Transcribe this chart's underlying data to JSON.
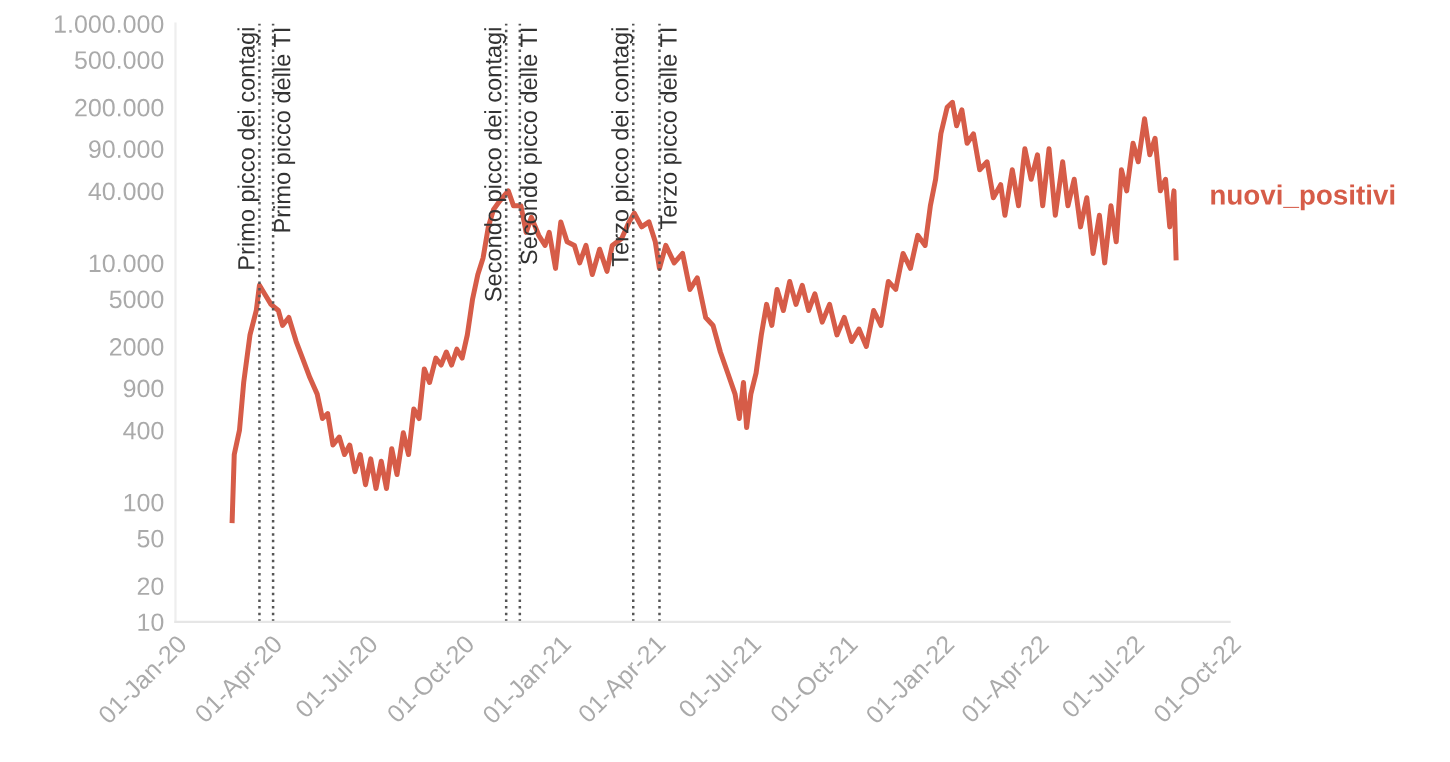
{
  "chart_data": {
    "type": "line",
    "x": [
      "2020-02-24",
      "2020-02-26",
      "2020-03-02",
      "2020-03-06",
      "2020-03-12",
      "2020-03-18",
      "2020-03-21",
      "2020-03-26",
      "2020-04-01",
      "2020-04-08",
      "2020-04-12",
      "2020-04-18",
      "2020-04-25",
      "2020-05-01",
      "2020-05-08",
      "2020-05-15",
      "2020-05-20",
      "2020-05-25",
      "2020-05-30",
      "2020-06-05",
      "2020-06-10",
      "2020-06-15",
      "2020-06-20",
      "2020-06-25",
      "2020-06-30",
      "2020-07-05",
      "2020-07-10",
      "2020-07-15",
      "2020-07-20",
      "2020-07-25",
      "2020-07-30",
      "2020-08-05",
      "2020-08-10",
      "2020-08-15",
      "2020-08-20",
      "2020-08-25",
      "2020-08-30",
      "2020-09-05",
      "2020-09-10",
      "2020-09-15",
      "2020-09-20",
      "2020-09-25",
      "2020-09-30",
      "2020-10-05",
      "2020-10-10",
      "2020-10-15",
      "2020-10-20",
      "2020-10-25",
      "2020-10-30",
      "2020-11-05",
      "2020-11-13",
      "2020-11-18",
      "2020-11-25",
      "2020-11-30",
      "2020-12-05",
      "2020-12-12",
      "2020-12-18",
      "2020-12-22",
      "2020-12-28",
      "2021-01-02",
      "2021-01-08",
      "2021-01-15",
      "2021-01-20",
      "2021-01-26",
      "2021-02-01",
      "2021-02-08",
      "2021-02-15",
      "2021-02-20",
      "2021-03-01",
      "2021-03-08",
      "2021-03-13",
      "2021-03-20",
      "2021-03-27",
      "2021-04-02",
      "2021-04-06",
      "2021-04-12",
      "2021-04-20",
      "2021-04-28",
      "2021-05-05",
      "2021-05-12",
      "2021-05-20",
      "2021-05-27",
      "2021-06-03",
      "2021-06-10",
      "2021-06-17",
      "2021-06-21",
      "2021-06-25",
      "2021-06-28",
      "2021-07-02",
      "2021-07-07",
      "2021-07-12",
      "2021-07-17",
      "2021-07-22",
      "2021-07-27",
      "2021-08-02",
      "2021-08-08",
      "2021-08-14",
      "2021-08-20",
      "2021-08-26",
      "2021-09-01",
      "2021-09-08",
      "2021-09-15",
      "2021-09-22",
      "2021-09-29",
      "2021-10-06",
      "2021-10-13",
      "2021-10-20",
      "2021-10-27",
      "2021-11-03",
      "2021-11-10",
      "2021-11-17",
      "2021-11-24",
      "2021-12-01",
      "2021-12-08",
      "2021-12-15",
      "2021-12-20",
      "2021-12-25",
      "2021-12-30",
      "2022-01-05",
      "2022-01-10",
      "2022-01-14",
      "2022-01-19",
      "2022-01-24",
      "2022-01-30",
      "2022-02-05",
      "2022-02-12",
      "2022-02-18",
      "2022-02-25",
      "2022-03-01",
      "2022-03-08",
      "2022-03-14",
      "2022-03-20",
      "2022-03-26",
      "2022-04-01",
      "2022-04-06",
      "2022-04-12",
      "2022-04-18",
      "2022-04-25",
      "2022-04-30",
      "2022-05-06",
      "2022-05-12",
      "2022-05-18",
      "2022-05-24",
      "2022-05-30",
      "2022-06-04",
      "2022-06-10",
      "2022-06-15",
      "2022-06-20",
      "2022-06-25",
      "2022-07-01",
      "2022-07-06",
      "2022-07-12",
      "2022-07-17",
      "2022-07-22",
      "2022-07-27",
      "2022-08-01",
      "2022-08-05",
      "2022-08-09",
      "2022-08-11"
    ],
    "series": [
      {
        "name": "nuovi_positivi",
        "color": "#d65c48",
        "values": [
          70,
          250,
          400,
          1000,
          2500,
          4000,
          6500,
          5500,
          4500,
          4000,
          3000,
          3500,
          2200,
          1600,
          1100,
          800,
          500,
          550,
          300,
          350,
          250,
          300,
          180,
          250,
          140,
          230,
          130,
          220,
          130,
          280,
          170,
          380,
          250,
          600,
          500,
          1300,
          1000,
          1600,
          1400,
          1800,
          1400,
          1900,
          1600,
          2500,
          5000,
          8000,
          11000,
          20000,
          28000,
          33000,
          40000,
          30000,
          30000,
          18000,
          24000,
          17000,
          14000,
          18000,
          9000,
          22000,
          15000,
          14000,
          10000,
          14000,
          8000,
          13000,
          8500,
          14000,
          16000,
          22000,
          26000,
          20000,
          22000,
          15000,
          9000,
          14000,
          10000,
          12000,
          6000,
          7500,
          3500,
          3000,
          1800,
          1200,
          800,
          500,
          1000,
          420,
          800,
          1200,
          2500,
          4500,
          3000,
          6000,
          4000,
          7000,
          4500,
          6500,
          4000,
          5500,
          3200,
          4500,
          2500,
          3500,
          2200,
          2800,
          2000,
          4000,
          3000,
          7000,
          6000,
          12000,
          9000,
          17000,
          14000,
          30000,
          50000,
          120000,
          200000,
          220000,
          140000,
          190000,
          100000,
          120000,
          60000,
          70000,
          35000,
          45000,
          25000,
          60000,
          30000,
          90000,
          50000,
          80000,
          30000,
          90000,
          25000,
          70000,
          30000,
          50000,
          20000,
          35000,
          12000,
          25000,
          10000,
          30000,
          15000,
          60000,
          40000,
          100000,
          70000,
          160000,
          80000,
          110000,
          40000,
          50000,
          20000,
          40000,
          11000
        ]
      }
    ],
    "log": "y",
    "xlim": [
      "2020-01-01",
      "2022-10-01"
    ],
    "xticks": [
      {
        "value": "2020-01-01",
        "label": "01-Jan-20"
      },
      {
        "value": "2020-04-01",
        "label": "01-Apr-20"
      },
      {
        "value": "2020-07-01",
        "label": "01-Jul-20"
      },
      {
        "value": "2020-10-01",
        "label": "01-Oct-20"
      },
      {
        "value": "2021-01-01",
        "label": "01-Jan-21"
      },
      {
        "value": "2021-04-01",
        "label": "01-Apr-21"
      },
      {
        "value": "2021-07-01",
        "label": "01-Jul-21"
      },
      {
        "value": "2021-10-01",
        "label": "01-Oct-21"
      },
      {
        "value": "2022-01-01",
        "label": "01-Jan-22"
      },
      {
        "value": "2022-04-01",
        "label": "01-Apr-22"
      },
      {
        "value": "2022-07-01",
        "label": "01-Jul-22"
      },
      {
        "value": "2022-10-01",
        "label": "01-Oct-22"
      }
    ],
    "ylim": [
      10,
      1000000
    ],
    "yticks": [
      10,
      20,
      50,
      100,
      400,
      900,
      2000,
      5000,
      {
        "value": 10000,
        "label": "10.000"
      },
      {
        "value": 40000,
        "label": "40.000"
      },
      {
        "value": 90000,
        "label": "90.000"
      },
      {
        "value": 200000,
        "label": "200.000"
      },
      {
        "value": 500000,
        "label": "500.000"
      },
      {
        "value": 1000000,
        "label": "1.000.000"
      }
    ],
    "ref_lines": [
      {
        "axis": "x",
        "value": "2020-03-21",
        "label": "Primo picco dei contagi",
        "color": "#555555",
        "line_style": "dotted"
      },
      {
        "axis": "x",
        "value": "2020-04-03",
        "label": "Primo picco delle TI",
        "color": "#555555",
        "line_style": "dotted"
      },
      {
        "axis": "x",
        "value": "2020-11-11",
        "label": "Secondo picco dei contagi",
        "color": "#555555",
        "line_style": "dotted"
      },
      {
        "axis": "x",
        "value": "2020-11-24",
        "label": "Secondo picco delle TI",
        "color": "#555555",
        "line_style": "dotted"
      },
      {
        "axis": "x",
        "value": "2021-03-12",
        "label": "Terzo picco dei contagi",
        "color": "#555555",
        "line_style": "dotted"
      },
      {
        "axis": "x",
        "value": "2021-04-06",
        "label": "Terzo picco delle TI",
        "color": "#555555",
        "line_style": "dotted"
      }
    ],
    "grid": false,
    "legend": false
  }
}
